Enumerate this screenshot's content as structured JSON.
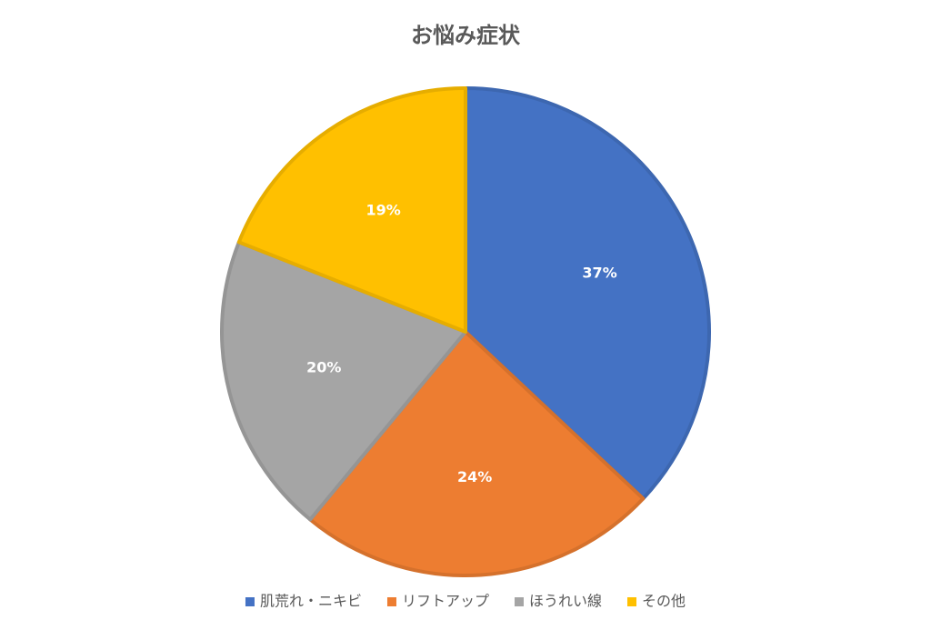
{
  "chart_data": {
    "type": "pie",
    "title": "お悩み症状",
    "categories": [
      "肌荒れ・ニキビ",
      "リフトアップ",
      "ほうれい線",
      "その他"
    ],
    "values": [
      37,
      24,
      20,
      19
    ],
    "value_labels": [
      "37%",
      "24%",
      "20%",
      "19%"
    ],
    "colors": [
      "#4472c4",
      "#ed7d31",
      "#a5a5a5",
      "#ffc000"
    ],
    "legend": "bottom"
  }
}
